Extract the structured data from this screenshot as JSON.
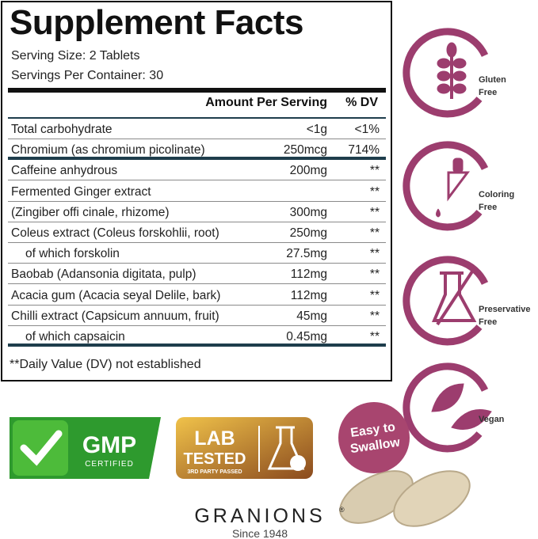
{
  "facts": {
    "title": "Supplement Facts",
    "serving_size": "Serving Size: 2 Tablets",
    "servings_per_container": "Servings Per Container: 30",
    "header": {
      "amount": "Amount Per Serving",
      "dv": "% DV"
    },
    "rows": [
      {
        "name": "Total carbohydrate",
        "amount": "<1g",
        "dv": "<1%"
      },
      {
        "name": "Chromium (as chromium picolinate)",
        "amount": "250mcg",
        "dv": "714%"
      },
      {
        "name": "Caffeine anhydrous",
        "amount": "200mg",
        "dv": "**"
      },
      {
        "name": "Fermented Ginger extract",
        "dv": "**"
      },
      {
        "name": "(Zingiber offi cinale, rhizome)",
        "amount": "300mg",
        "dv": "**"
      },
      {
        "name": "Coleus extract (Coleus forskohlii, root)",
        "amount": "250mg",
        "dv": "**"
      },
      {
        "name": "of which forskolin",
        "amount": "27.5mg",
        "dv": "**"
      },
      {
        "name": "Baobab (Adansonia digitata, pulp)",
        "amount": "112mg",
        "dv": "**"
      },
      {
        "name": "Acacia gum (Acacia seyal Delile, bark)",
        "amount": "112mg",
        "dv": "**"
      },
      {
        "name": "Chilli extract (Capsicum annuum, fruit)",
        "amount": "45mg",
        "dv": "**"
      },
      {
        "name": "of which capsaicin",
        "amount": "0.45mg",
        "dv": "**"
      }
    ],
    "footnote": "**Daily Value (DV) not established"
  },
  "badges": [
    {
      "lines": [
        "Gluten",
        "Free"
      ]
    },
    {
      "lines": [
        "Coloring",
        "Free"
      ]
    },
    {
      "lines": [
        "Preservative",
        "Free"
      ]
    },
    {
      "lines": [
        "Vegan"
      ]
    }
  ],
  "gmp": {
    "title": "GMP",
    "subtitle": "CERTIFIED"
  },
  "lab": {
    "lines": [
      "LAB",
      "TESTED"
    ],
    "subtitle": "3RD PARTY PASSED"
  },
  "callout": {
    "lines": [
      "Easy to",
      "Swallow"
    ]
  },
  "brand": {
    "name": "GRANIONS",
    "mark": "®",
    "since": "Since 1948"
  }
}
